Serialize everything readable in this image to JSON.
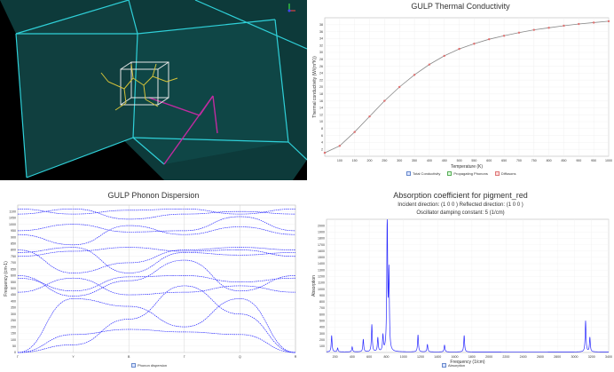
{
  "thermal": {
    "title": "GULP Thermal Conductivity",
    "xlabel": "Temperature (K)",
    "ylabel": "Thermal conductivity (W/(m*K))",
    "legend": [
      "Total Conductivity",
      "Propagating Phonons",
      "Diffusons"
    ]
  },
  "dispersion": {
    "title": "GULP Phonon Dispersion",
    "ylabel": "Frequency (cm-1)",
    "kpoints": [
      "Γ",
      "Y",
      "B",
      "Γ",
      "Q",
      "R"
    ],
    "legend": "Phonon dispersion"
  },
  "absorption": {
    "title": "Absorption coefficient for pigment_red",
    "line1": "Incident direction: (1 0 0 ) Reflected direction: (1 0 0 )",
    "line2": "Oscillator damping constant:  5  (1/cm)",
    "xlabel": "Frequency (1/cm)",
    "ylabel": "Absorption",
    "legend": "Absorption"
  },
  "colors": {
    "line": "#2a2aff",
    "accent": "#e07070",
    "viewer_bg": "#000000"
  },
  "chart_data": [
    {
      "type": "line",
      "title": "GULP Thermal Conductivity",
      "xlabel": "Temperature (K)",
      "ylabel": "Thermal conductivity (W/(m*K))",
      "x": [
        50,
        100,
        150,
        200,
        250,
        300,
        350,
        400,
        450,
        500,
        550,
        600,
        650,
        700,
        750,
        800,
        850,
        900,
        950,
        1000
      ],
      "series": [
        {
          "name": "Diffusons",
          "values": [
            1,
            3,
            7,
            11.5,
            16,
            20,
            23.5,
            26.5,
            29,
            31,
            32.5,
            33.8,
            34.8,
            35.7,
            36.5,
            37.1,
            37.7,
            38.2,
            38.6,
            39
          ]
        }
      ],
      "xlim": [
        50,
        1000
      ],
      "ylim": [
        0,
        40
      ],
      "xticks": [
        100,
        150,
        200,
        250,
        300,
        350,
        400,
        450,
        500,
        550,
        600,
        650,
        700,
        750,
        800,
        850,
        900,
        950,
        1000
      ],
      "yticks": [
        2,
        4,
        6,
        8,
        10,
        12,
        14,
        16,
        18,
        20,
        22,
        24,
        26,
        28,
        30,
        32,
        34,
        36,
        38
      ]
    },
    {
      "type": "line",
      "title": "GULP Phonon Dispersion",
      "ylabel": "Frequency (cm-1)",
      "categories": [
        "Γ",
        "Y",
        "B",
        "Γ",
        "Q",
        "R"
      ],
      "ylim": [
        0,
        1150
      ],
      "yticks": [
        0,
        50,
        100,
        150,
        200,
        250,
        300,
        350,
        400,
        450,
        500,
        550,
        600,
        650,
        700,
        750,
        800,
        850,
        900,
        950,
        1000,
        1050,
        1100
      ],
      "series": [
        {
          "values": [
            0,
            140,
            180,
            160,
            140,
            0
          ]
        },
        {
          "values": [
            0,
            60,
            260,
            520,
            300,
            0
          ]
        },
        {
          "values": [
            0,
            420,
            360,
            200,
            420,
            0
          ]
        },
        {
          "values": [
            470,
            580,
            450,
            470,
            520,
            470
          ]
        },
        {
          "values": [
            580,
            480,
            590,
            600,
            550,
            580
          ]
        },
        {
          "values": [
            600,
            440,
            560,
            720,
            480,
            600
          ]
        },
        {
          "values": [
            750,
            790,
            820,
            790,
            800,
            750
          ]
        },
        {
          "values": [
            780,
            820,
            620,
            780,
            760,
            780
          ]
        },
        {
          "values": [
            800,
            620,
            700,
            800,
            820,
            800
          ]
        },
        {
          "values": [
            920,
            840,
            990,
            920,
            980,
            920
          ]
        },
        {
          "values": [
            950,
            1000,
            940,
            950,
            1060,
            950
          ]
        },
        {
          "values": [
            1080,
            1120,
            1040,
            1080,
            1100,
            1080
          ]
        },
        {
          "values": [
            1120,
            1080,
            1110,
            1120,
            1080,
            1120
          ]
        }
      ]
    },
    {
      "type": "line",
      "title": "Absorption coefficient for pigment_red",
      "xlabel": "Frequency (1/cm)",
      "ylabel": "Absorption",
      "xlim": [
        100,
        3400
      ],
      "ylim": [
        0,
        2100
      ],
      "xticks": [
        200,
        400,
        600,
        800,
        1000,
        1200,
        1400,
        1600,
        1800,
        2000,
        2200,
        2400,
        2600,
        2800,
        3000,
        3200,
        3400
      ],
      "yticks": [
        100,
        200,
        300,
        400,
        500,
        600,
        700,
        800,
        900,
        1000,
        1100,
        1200,
        1300,
        1400,
        1500,
        1600,
        1700,
        1800,
        1900,
        2000
      ],
      "series": [
        {
          "name": "Absorption",
          "peaks": [
            [
              160,
              260
            ],
            [
              230,
              60
            ],
            [
              400,
              80
            ],
            [
              530,
              200
            ],
            [
              630,
              430
            ],
            [
              700,
              220
            ],
            [
              760,
              250
            ],
            [
              810,
              2100
            ],
            [
              830,
              1200
            ],
            [
              1170,
              270
            ],
            [
              1280,
              120
            ],
            [
              1480,
              110
            ],
            [
              1710,
              260
            ],
            [
              3130,
              490
            ],
            [
              3180,
              230
            ]
          ]
        }
      ]
    }
  ]
}
